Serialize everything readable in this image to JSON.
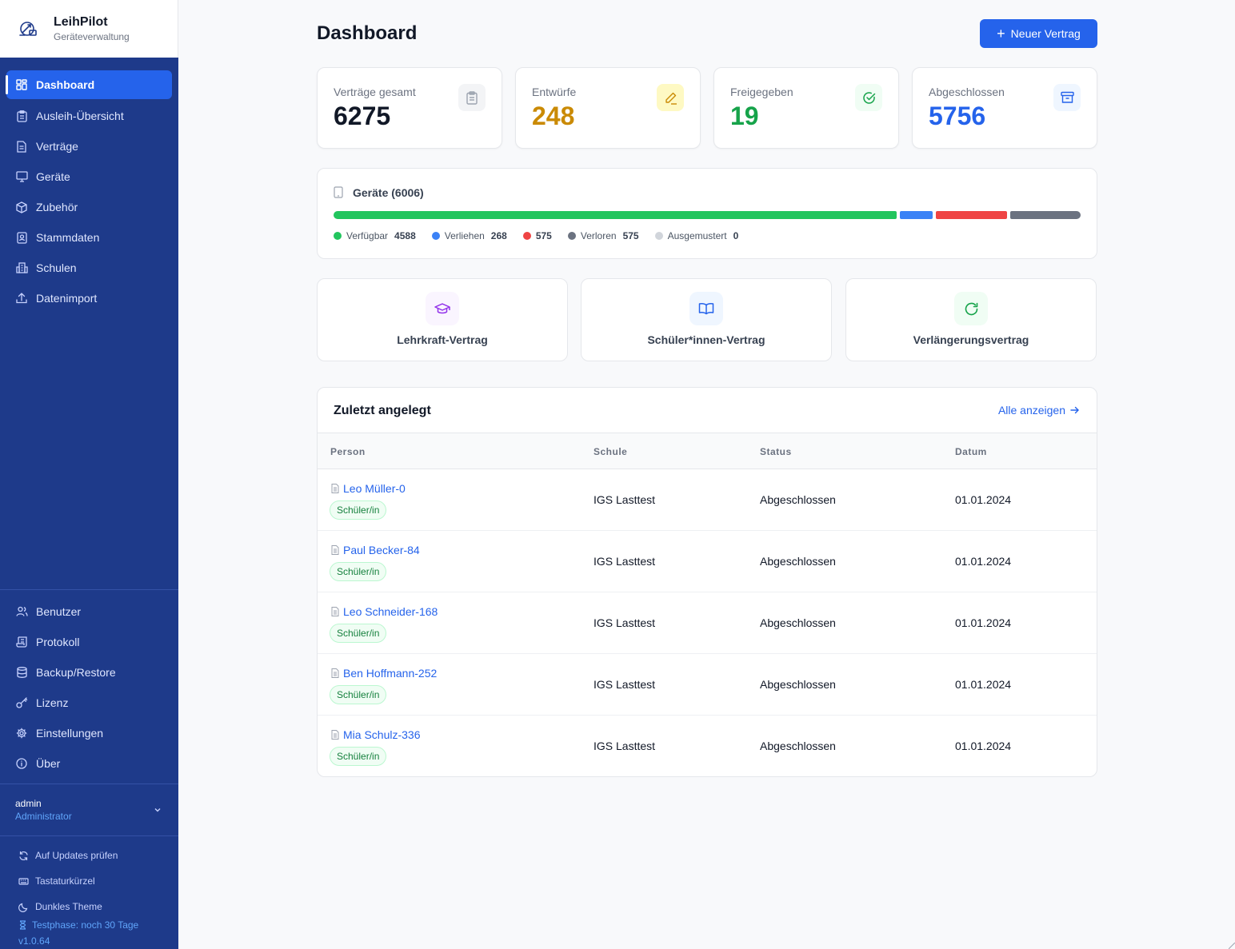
{
  "app": {
    "name": "LeihPilot",
    "subtitle": "Geräteverwaltung"
  },
  "nav": [
    {
      "label": "Dashboard",
      "icon": "dashboard-icon",
      "active": true
    },
    {
      "label": "Ausleih-Übersicht",
      "icon": "clipboard-icon"
    },
    {
      "label": "Verträge",
      "icon": "document-icon"
    },
    {
      "label": "Geräte",
      "icon": "monitor-icon"
    },
    {
      "label": "Zubehör",
      "icon": "box-icon"
    },
    {
      "label": "Stammdaten",
      "icon": "contact-icon"
    },
    {
      "label": "Schulen",
      "icon": "school-icon"
    },
    {
      "label": "Datenimport",
      "icon": "upload-icon"
    }
  ],
  "nav_bottom": [
    {
      "label": "Benutzer",
      "icon": "users-icon"
    },
    {
      "label": "Protokoll",
      "icon": "scroll-icon"
    },
    {
      "label": "Backup/Restore",
      "icon": "database-icon"
    },
    {
      "label": "Lizenz",
      "icon": "key-icon"
    },
    {
      "label": "Einstellungen",
      "icon": "gear-icon"
    },
    {
      "label": "Über",
      "icon": "info-icon"
    }
  ],
  "user": {
    "name": "admin",
    "role": "Administrator"
  },
  "footer": {
    "updates": "Auf Updates prüfen",
    "shortcuts": "Tastaturkürzel",
    "theme": "Dunkles Theme",
    "trial": "Testphase: noch 30 Tage",
    "version": "v1.0.64"
  },
  "header": {
    "title": "Dashboard",
    "new_button": "Neuer Vertrag"
  },
  "stats": [
    {
      "label": "Verträge gesamt",
      "value": "6275",
      "color": "#111827",
      "icon": "clipboard-icon"
    },
    {
      "label": "Entwürfe",
      "value": "248",
      "color": "#ca8a04",
      "icon": "pencil-icon"
    },
    {
      "label": "Freigegeben",
      "value": "19",
      "color": "#16a34a",
      "icon": "check-circle-icon"
    },
    {
      "label": "Abgeschlossen",
      "value": "5756",
      "color": "#2563eb",
      "icon": "archive-icon"
    }
  ],
  "devices": {
    "title": "Geräte (6006)",
    "segments": [
      {
        "label": "Verfügbar",
        "value": 4588,
        "color": "#22c55e"
      },
      {
        "label": "Verliehen",
        "value": 268,
        "color": "#3b82f6"
      },
      {
        "label": "",
        "value": 575,
        "color": "#ef4444"
      },
      {
        "label": "Verloren",
        "value": 575,
        "color": "#6b7280"
      },
      {
        "label": "Ausgemustert",
        "value": 0,
        "color": "#d1d5db"
      }
    ],
    "legend_values": [
      "4588",
      "268",
      "575",
      "575",
      "0"
    ]
  },
  "quick": [
    {
      "label": "Lehrkraft-Vertrag",
      "icon": "graduation-cap-icon"
    },
    {
      "label": "Schüler*innen-Vertrag",
      "icon": "book-open-icon"
    },
    {
      "label": "Verlängerungsvertrag",
      "icon": "refresh-icon"
    }
  ],
  "recent": {
    "title": "Zuletzt angelegt",
    "show_all": "Alle anzeigen",
    "columns": [
      "Person",
      "Schule",
      "Status",
      "Datum"
    ],
    "rows": [
      {
        "person": "Leo Müller-0",
        "tag": "Schüler/in",
        "school": "IGS Lasttest",
        "status": "Abgeschlossen",
        "date": "01.01.2024"
      },
      {
        "person": "Paul Becker-84",
        "tag": "Schüler/in",
        "school": "IGS Lasttest",
        "status": "Abgeschlossen",
        "date": "01.01.2024"
      },
      {
        "person": "Leo Schneider-168",
        "tag": "Schüler/in",
        "school": "IGS Lasttest",
        "status": "Abgeschlossen",
        "date": "01.01.2024"
      },
      {
        "person": "Ben Hoffmann-252",
        "tag": "Schüler/in",
        "school": "IGS Lasttest",
        "status": "Abgeschlossen",
        "date": "01.01.2024"
      },
      {
        "person": "Mia Schulz-336",
        "tag": "Schüler/in",
        "school": "IGS Lasttest",
        "status": "Abgeschlossen",
        "date": "01.01.2024"
      }
    ]
  }
}
